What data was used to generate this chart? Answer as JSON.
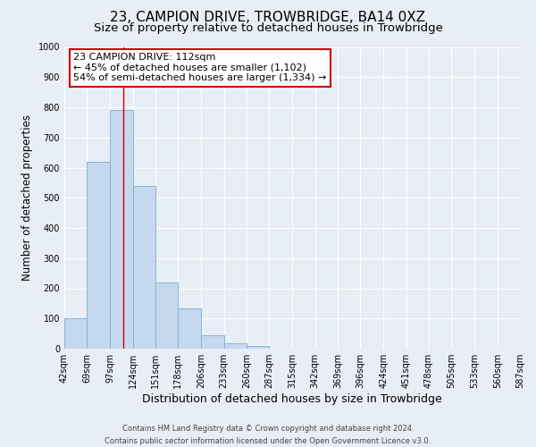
{
  "title": "23, CAMPION DRIVE, TROWBRIDGE, BA14 0XZ",
  "subtitle": "Size of property relative to detached houses in Trowbridge",
  "xlabel": "Distribution of detached houses by size in Trowbridge",
  "ylabel": "Number of detached properties",
  "footer_line1": "Contains HM Land Registry data © Crown copyright and database right 2024.",
  "footer_line2": "Contains public sector information licensed under the Open Government Licence v3.0.",
  "bin_edges": [
    42,
    69,
    97,
    124,
    151,
    178,
    206,
    233,
    260,
    287,
    315,
    342,
    369,
    396,
    424,
    451,
    478,
    505,
    533,
    560,
    587
  ],
  "bin_heights": [
    100,
    620,
    790,
    540,
    220,
    133,
    44,
    18,
    10,
    0,
    0,
    0,
    0,
    0,
    0,
    0,
    0,
    0,
    0,
    0
  ],
  "bar_color": "#c5d8ee",
  "bar_edge_color": "#7aafd4",
  "bar_edge_width": 0.6,
  "vline_x": 112,
  "vline_color": "#cc0000",
  "annotation_title": "23 CAMPION DRIVE: 112sqm",
  "annotation_line1": "← 45% of detached houses are smaller (1,102)",
  "annotation_line2": "54% of semi-detached houses are larger (1,334) →",
  "annotation_box_color": "#cc0000",
  "ylim": [
    0,
    1000
  ],
  "yticks": [
    0,
    100,
    200,
    300,
    400,
    500,
    600,
    700,
    800,
    900,
    1000
  ],
  "background_color": "#e8eef5",
  "plot_background_color": "#e8eef5",
  "grid_color": "#ffffff",
  "title_fontsize": 11,
  "subtitle_fontsize": 9.5,
  "xlabel_fontsize": 9,
  "ylabel_fontsize": 8.5,
  "tick_label_fontsize": 7,
  "annotation_fontsize": 8,
  "footer_fontsize": 6
}
